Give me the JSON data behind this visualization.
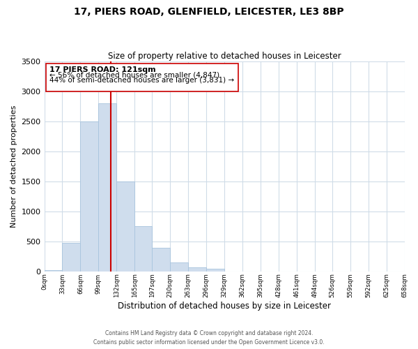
{
  "title_line1": "17, PIERS ROAD, GLENFIELD, LEICESTER, LE3 8BP",
  "title_line2": "Size of property relative to detached houses in Leicester",
  "xlabel": "Distribution of detached houses by size in Leicester",
  "ylabel": "Number of detached properties",
  "bar_edges": [
    0,
    33,
    66,
    99,
    132,
    165,
    197,
    230,
    263,
    296,
    329,
    362,
    395,
    428,
    461,
    494,
    526,
    559,
    592,
    625,
    658
  ],
  "bar_heights": [
    20,
    480,
    2500,
    2800,
    1500,
    750,
    390,
    150,
    70,
    40,
    0,
    0,
    0,
    0,
    0,
    0,
    0,
    0,
    0,
    0
  ],
  "bar_color": "#cfdded",
  "bar_edgecolor": "#a8c4de",
  "vline_x": 121,
  "vline_color": "#cc0000",
  "ylim": [
    0,
    3500
  ],
  "xlim": [
    0,
    658
  ],
  "annotation_title": "17 PIERS ROAD: 121sqm",
  "annotation_line2": "← 56% of detached houses are smaller (4,847)",
  "annotation_line3": "44% of semi-detached houses are larger (3,831) →",
  "footer_line1": "Contains HM Land Registry data © Crown copyright and database right 2024.",
  "footer_line2": "Contains public sector information licensed under the Open Government Licence v3.0.",
  "tick_labels": [
    "0sqm",
    "33sqm",
    "66sqm",
    "99sqm",
    "132sqm",
    "165sqm",
    "197sqm",
    "230sqm",
    "263sqm",
    "296sqm",
    "329sqm",
    "362sqm",
    "395sqm",
    "428sqm",
    "461sqm",
    "494sqm",
    "526sqm",
    "559sqm",
    "592sqm",
    "625sqm",
    "658sqm"
  ],
  "background_color": "#ffffff",
  "grid_color": "#d0dce8"
}
